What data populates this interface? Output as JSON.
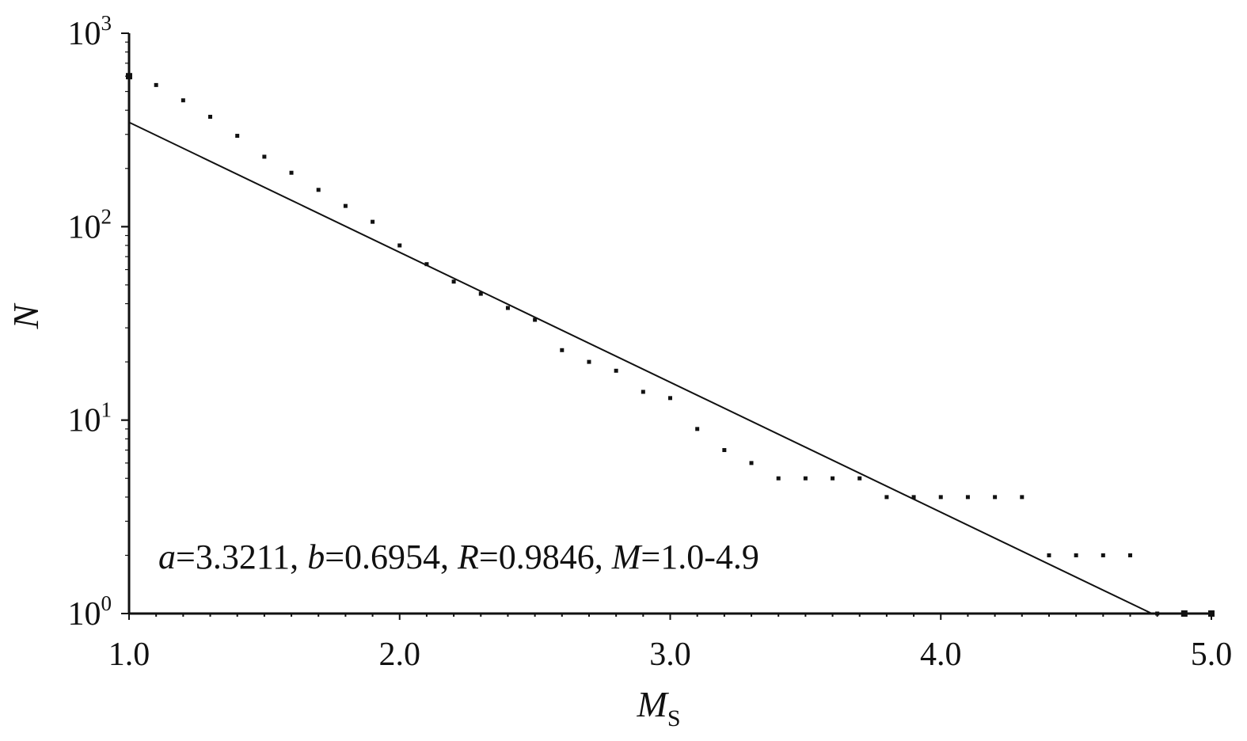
{
  "chart_data": {
    "type": "scatter",
    "xlabel": "M",
    "xlabel_subscript": "S",
    "ylabel": "N",
    "xlim": [
      1.0,
      5.0
    ],
    "ylim": [
      1,
      1000
    ],
    "y_scale": "log",
    "x_ticks": [
      "1.0",
      "2.0",
      "3.0",
      "4.0",
      "5.0"
    ],
    "y_ticks": [
      {
        "base": "10",
        "exp": "0"
      },
      {
        "base": "10",
        "exp": "1"
      },
      {
        "base": "10",
        "exp": "2"
      },
      {
        "base": "10",
        "exp": "3"
      }
    ],
    "points": [
      {
        "x": 1.0,
        "y": 600
      },
      {
        "x": 1.1,
        "y": 540
      },
      {
        "x": 1.2,
        "y": 450
      },
      {
        "x": 1.3,
        "y": 370
      },
      {
        "x": 1.4,
        "y": 295
      },
      {
        "x": 1.5,
        "y": 230
      },
      {
        "x": 1.6,
        "y": 190
      },
      {
        "x": 1.7,
        "y": 155
      },
      {
        "x": 1.8,
        "y": 128
      },
      {
        "x": 1.9,
        "y": 106
      },
      {
        "x": 2.0,
        "y": 80
      },
      {
        "x": 2.1,
        "y": 64
      },
      {
        "x": 2.2,
        "y": 52
      },
      {
        "x": 2.3,
        "y": 45
      },
      {
        "x": 2.4,
        "y": 38
      },
      {
        "x": 2.5,
        "y": 33
      },
      {
        "x": 2.6,
        "y": 23
      },
      {
        "x": 2.7,
        "y": 20
      },
      {
        "x": 2.8,
        "y": 18
      },
      {
        "x": 2.9,
        "y": 14
      },
      {
        "x": 3.0,
        "y": 13
      },
      {
        "x": 3.1,
        "y": 9
      },
      {
        "x": 3.2,
        "y": 7
      },
      {
        "x": 3.3,
        "y": 6
      },
      {
        "x": 3.4,
        "y": 5
      },
      {
        "x": 3.5,
        "y": 5
      },
      {
        "x": 3.6,
        "y": 5
      },
      {
        "x": 3.7,
        "y": 5
      },
      {
        "x": 3.8,
        "y": 4
      },
      {
        "x": 3.9,
        "y": 4
      },
      {
        "x": 4.0,
        "y": 4
      },
      {
        "x": 4.1,
        "y": 4
      },
      {
        "x": 4.2,
        "y": 4
      },
      {
        "x": 4.3,
        "y": 4
      },
      {
        "x": 4.4,
        "y": 2
      },
      {
        "x": 4.5,
        "y": 2
      },
      {
        "x": 4.6,
        "y": 2
      },
      {
        "x": 4.7,
        "y": 2
      },
      {
        "x": 4.8,
        "y": 1
      },
      {
        "x": 4.9,
        "y": 1
      },
      {
        "x": 5.0,
        "y": 1
      }
    ],
    "fit_line": {
      "a": 3.3211,
      "b": 0.6954,
      "x_range": [
        1.0,
        4.78
      ]
    },
    "annotation": "a=3.3211, b=0.6954, R=0.9846, M=1.0-4.9",
    "annotation_parts": [
      {
        "text": "a",
        "italic": true
      },
      {
        "text": "=3.3211, ",
        "italic": false
      },
      {
        "text": "b",
        "italic": true
      },
      {
        "text": "=0.6954, ",
        "italic": false
      },
      {
        "text": "R",
        "italic": true
      },
      {
        "text": "=0.9846, ",
        "italic": false
      },
      {
        "text": "M",
        "italic": true
      },
      {
        "text": "=1.0-4.9",
        "italic": false
      }
    ],
    "grid": false,
    "color": "#111111"
  }
}
